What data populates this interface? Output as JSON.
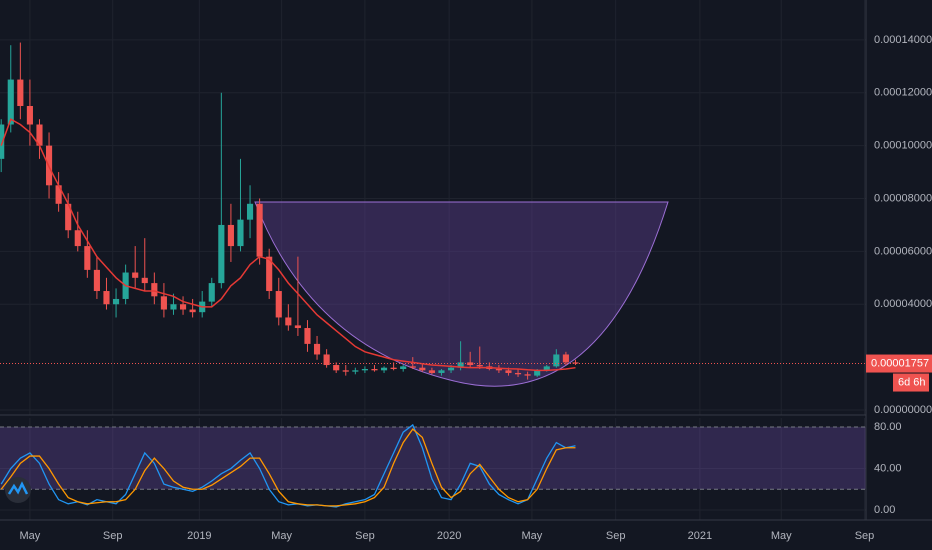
{
  "chart_data": [
    {
      "type": "candlestick",
      "x": [
        -6,
        -4,
        -2,
        0,
        2,
        4,
        6,
        8,
        10,
        12,
        14,
        16,
        18,
        20,
        22,
        24,
        26,
        28,
        30,
        32,
        34,
        36,
        38,
        40,
        42,
        44,
        46,
        48,
        50,
        52,
        54,
        56,
        58,
        60,
        62,
        64,
        66,
        68,
        70,
        72,
        74,
        76,
        78,
        80,
        82,
        84,
        86,
        88,
        90,
        92,
        94,
        96,
        98,
        100,
        102,
        104,
        106,
        108,
        110,
        112,
        114
      ],
      "candles": [
        [
          9.5e-05,
          0.00011,
          9e-05,
          0.000108
        ],
        [
          0.000108,
          0.000138,
          0.000105,
          0.000125
        ],
        [
          0.000125,
          0.000139,
          0.00011,
          0.000115
        ],
        [
          0.000115,
          0.000125,
          0.0001,
          0.000108
        ],
        [
          0.000108,
          0.00011,
          9.5e-05,
          0.0001
        ],
        [
          0.0001,
          0.000105,
          8e-05,
          8.5e-05
        ],
        [
          8.5e-05,
          9e-05,
          7.5e-05,
          7.8e-05
        ],
        [
          7.8e-05,
          8.2e-05,
          6.5e-05,
          6.8e-05
        ],
        [
          6.8e-05,
          7.5e-05,
          6e-05,
          6.2e-05
        ],
        [
          6.2e-05,
          6.8e-05,
          5e-05,
          5.3e-05
        ],
        [
          5.3e-05,
          5.8e-05,
          4.2e-05,
          4.5e-05
        ],
        [
          4.5e-05,
          5e-05,
          3.8e-05,
          4e-05
        ],
        [
          4e-05,
          4.6e-05,
          3.5e-05,
          4.2e-05
        ],
        [
          4.2e-05,
          5.5e-05,
          4e-05,
          5.2e-05
        ],
        [
          5.2e-05,
          6.2e-05,
          4.6e-05,
          5e-05
        ],
        [
          5e-05,
          6.5e-05,
          4.5e-05,
          4.8e-05
        ],
        [
          4.8e-05,
          5.2e-05,
          4e-05,
          4.3e-05
        ],
        [
          4.3e-05,
          4.8e-05,
          3.5e-05,
          3.8e-05
        ],
        [
          3.8e-05,
          4.4e-05,
          3.6e-05,
          4e-05
        ],
        [
          4e-05,
          4.3e-05,
          3.6e-05,
          3.8e-05
        ],
        [
          3.8e-05,
          4.2e-05,
          3.5e-05,
          3.7e-05
        ],
        [
          3.7e-05,
          4.5e-05,
          3.5e-05,
          4.1e-05
        ],
        [
          4.1e-05,
          5e-05,
          3.9e-05,
          4.8e-05
        ],
        [
          4.8e-05,
          0.00012,
          4.6e-05,
          7e-05
        ],
        [
          7e-05,
          7.8e-05,
          5.6e-05,
          6.2e-05
        ],
        [
          6.2e-05,
          9.5e-05,
          6e-05,
          7.2e-05
        ],
        [
          7.2e-05,
          8.5e-05,
          6.5e-05,
          7.8e-05
        ],
        [
          7.8e-05,
          8e-05,
          5.5e-05,
          5.8e-05
        ],
        [
          5.8e-05,
          6.1e-05,
          4.2e-05,
          4.5e-05
        ],
        [
          4.5e-05,
          5e-05,
          3.2e-05,
          3.5e-05
        ],
        [
          3.5e-05,
          4e-05,
          3e-05,
          3.2e-05
        ],
        [
          3.2e-05,
          5.8e-05,
          2.8e-05,
          3.1e-05
        ],
        [
          3.1e-05,
          3.4e-05,
          2.2e-05,
          2.5e-05
        ],
        [
          2.5e-05,
          2.8e-05,
          1.9e-05,
          2.1e-05
        ],
        [
          2.1e-05,
          2.3e-05,
          1.6e-05,
          1.7e-05
        ],
        [
          1.7e-05,
          1.8e-05,
          1.4e-05,
          1.5e-05
        ],
        [
          1.5e-05,
          1.7e-05,
          1.3e-05,
          1.45e-05
        ],
        [
          1.45e-05,
          1.6e-05,
          1.35e-05,
          1.5e-05
        ],
        [
          1.5e-05,
          1.65e-05,
          1.4e-05,
          1.55e-05
        ],
        [
          1.55e-05,
          1.7e-05,
          1.45e-05,
          1.5e-05
        ],
        [
          1.5e-05,
          1.65e-05,
          1.4e-05,
          1.6e-05
        ],
        [
          1.6e-05,
          1.8e-05,
          1.5e-05,
          1.55e-05
        ],
        [
          1.55e-05,
          1.7e-05,
          1.45e-05,
          1.65e-05
        ],
        [
          1.65e-05,
          2e-05,
          1.55e-05,
          1.6e-05
        ],
        [
          1.6e-05,
          1.75e-05,
          1.45e-05,
          1.5e-05
        ],
        [
          1.5e-05,
          1.6e-05,
          1.35e-05,
          1.4e-05
        ],
        [
          1.4e-05,
          1.55e-05,
          1.3e-05,
          1.5e-05
        ],
        [
          1.5e-05,
          1.7e-05,
          1.4e-05,
          1.6e-05
        ],
        [
          1.6e-05,
          2.6e-05,
          1.5e-05,
          1.8e-05
        ],
        [
          1.8e-05,
          2.2e-05,
          1.6e-05,
          1.7e-05
        ],
        [
          1.7e-05,
          2.4e-05,
          1.55e-05,
          1.65e-05
        ],
        [
          1.65e-05,
          1.8e-05,
          1.5e-05,
          1.55e-05
        ],
        [
          1.55e-05,
          1.7e-05,
          1.4e-05,
          1.5e-05
        ],
        [
          1.5e-05,
          1.6e-05,
          1.3e-05,
          1.4e-05
        ],
        [
          1.4e-05,
          1.55e-05,
          1.25e-05,
          1.35e-05
        ],
        [
          1.35e-05,
          1.45e-05,
          1.15e-05,
          1.3e-05
        ],
        [
          1.3e-05,
          1.55e-05,
          1.25e-05,
          1.5e-05
        ],
        [
          1.5e-05,
          1.7e-05,
          1.45e-05,
          1.65e-05
        ],
        [
          1.65e-05,
          2.3e-05,
          1.6e-05,
          2.1e-05
        ],
        [
          2.1e-05,
          2.2e-05,
          1.7e-05,
          1.8e-05
        ],
        [
          1.8e-05,
          1.9e-05,
          1.7e-05,
          1.757e-05
        ]
      ],
      "up_color": "#26a69a",
      "down_color": "#ef5350",
      "ma": {
        "color": "#e53935",
        "values": [
          0.0001,
          0.00011,
          0.000108,
          0.000105,
          0.0001,
          9.2e-05,
          8.5e-05,
          7.8e-05,
          7e-05,
          6.4e-05,
          5.8e-05,
          5.4e-05,
          5e-05,
          4.7e-05,
          4.6e-05,
          4.5e-05,
          4.5e-05,
          4.4e-05,
          4.3e-05,
          4.1e-05,
          4e-05,
          3.9e-05,
          3.9e-05,
          4.2e-05,
          4.7e-05,
          5e-05,
          5.5e-05,
          5.8e-05,
          5.7e-05,
          5.3e-05,
          4.8e-05,
          4.4e-05,
          4e-05,
          3.6e-05,
          3.3e-05,
          3e-05,
          2.7e-05,
          2.4e-05,
          2.2e-05,
          2.1e-05,
          2e-05,
          1.9e-05,
          1.85e-05,
          1.8e-05,
          1.75e-05,
          1.7e-05,
          1.68e-05,
          1.65e-05,
          1.62e-05,
          1.6e-05,
          1.6e-05,
          1.6e-05,
          1.58e-05,
          1.56e-05,
          1.55e-05,
          1.52e-05,
          1.5e-05,
          1.5e-05,
          1.52e-05,
          1.55e-05,
          1.6e-05
        ]
      },
      "xlim": [
        -6.25,
        174.5
      ],
      "xticks": [
        {
          "value": 0,
          "label": "May"
        },
        {
          "value": 17.3,
          "label": "Sep"
        },
        {
          "value": 35.4,
          "label": "2019"
        },
        {
          "value": 52.6,
          "label": "May"
        },
        {
          "value": 70,
          "label": "Sep"
        },
        {
          "value": 87.6,
          "label": "2020"
        },
        {
          "value": 104.9,
          "label": "May"
        },
        {
          "value": 122.4,
          "label": "Sep"
        },
        {
          "value": 140,
          "label": "2021"
        },
        {
          "value": 157,
          "label": "May"
        },
        {
          "value": 174.4,
          "label": "Sep"
        }
      ],
      "ylim": [
        -1.9e-06,
        0.0001551
      ],
      "yticks": [
        {
          "value": 0.00014,
          "label": "0.00014000"
        },
        {
          "value": 0.00012,
          "label": "0.00012000"
        },
        {
          "value": 0.0001,
          "label": "0.00010000"
        },
        {
          "value": 8e-05,
          "label": "0.00008000"
        },
        {
          "value": 6e-05,
          "label": "0.00006000"
        },
        {
          "value": 4e-05,
          "label": "0.00004000"
        },
        {
          "value": 0,
          "label": "0.00000000"
        }
      ],
      "last_price": {
        "value": 1.757e-05,
        "label": "0.00001757"
      },
      "countdown": "6d 6h",
      "grid": true
    },
    {
      "type": "stochastic",
      "series": [
        {
          "color": "#2196f3",
          "values": [
            25,
            40,
            50,
            55,
            45,
            25,
            10,
            6,
            8,
            5,
            10,
            8,
            6,
            15,
            35,
            55,
            45,
            25,
            22,
            20,
            18,
            22,
            28,
            35,
            40,
            48,
            55,
            40,
            20,
            8,
            5,
            6,
            4,
            5,
            4,
            3,
            6,
            8,
            10,
            15,
            35,
            55,
            75,
            82,
            60,
            30,
            12,
            10,
            25,
            45,
            42,
            25,
            15,
            10,
            6,
            10,
            30,
            50,
            65,
            60,
            62
          ]
        },
        {
          "color": "#ff9800",
          "values": [
            20,
            32,
            45,
            52,
            52,
            40,
            25,
            12,
            8,
            6,
            7,
            8,
            8,
            10,
            20,
            38,
            50,
            40,
            28,
            22,
            20,
            20,
            24,
            30,
            36,
            42,
            50,
            50,
            35,
            18,
            8,
            6,
            5,
            5,
            4,
            4,
            5,
            6,
            8,
            12,
            22,
            45,
            65,
            78,
            70,
            45,
            22,
            12,
            18,
            35,
            44,
            32,
            20,
            12,
            8,
            10,
            20,
            40,
            58,
            60,
            60
          ]
        }
      ],
      "band": [
        20,
        80
      ],
      "band_color": "#7e57c2",
      "ylim": [
        -9.6,
        88.7
      ],
      "yticks": [
        {
          "value": 80,
          "label": "80.00"
        },
        {
          "value": 40,
          "label": "40.00"
        },
        {
          "value": 0,
          "label": "0.00"
        }
      ],
      "grid": true
    }
  ]
}
